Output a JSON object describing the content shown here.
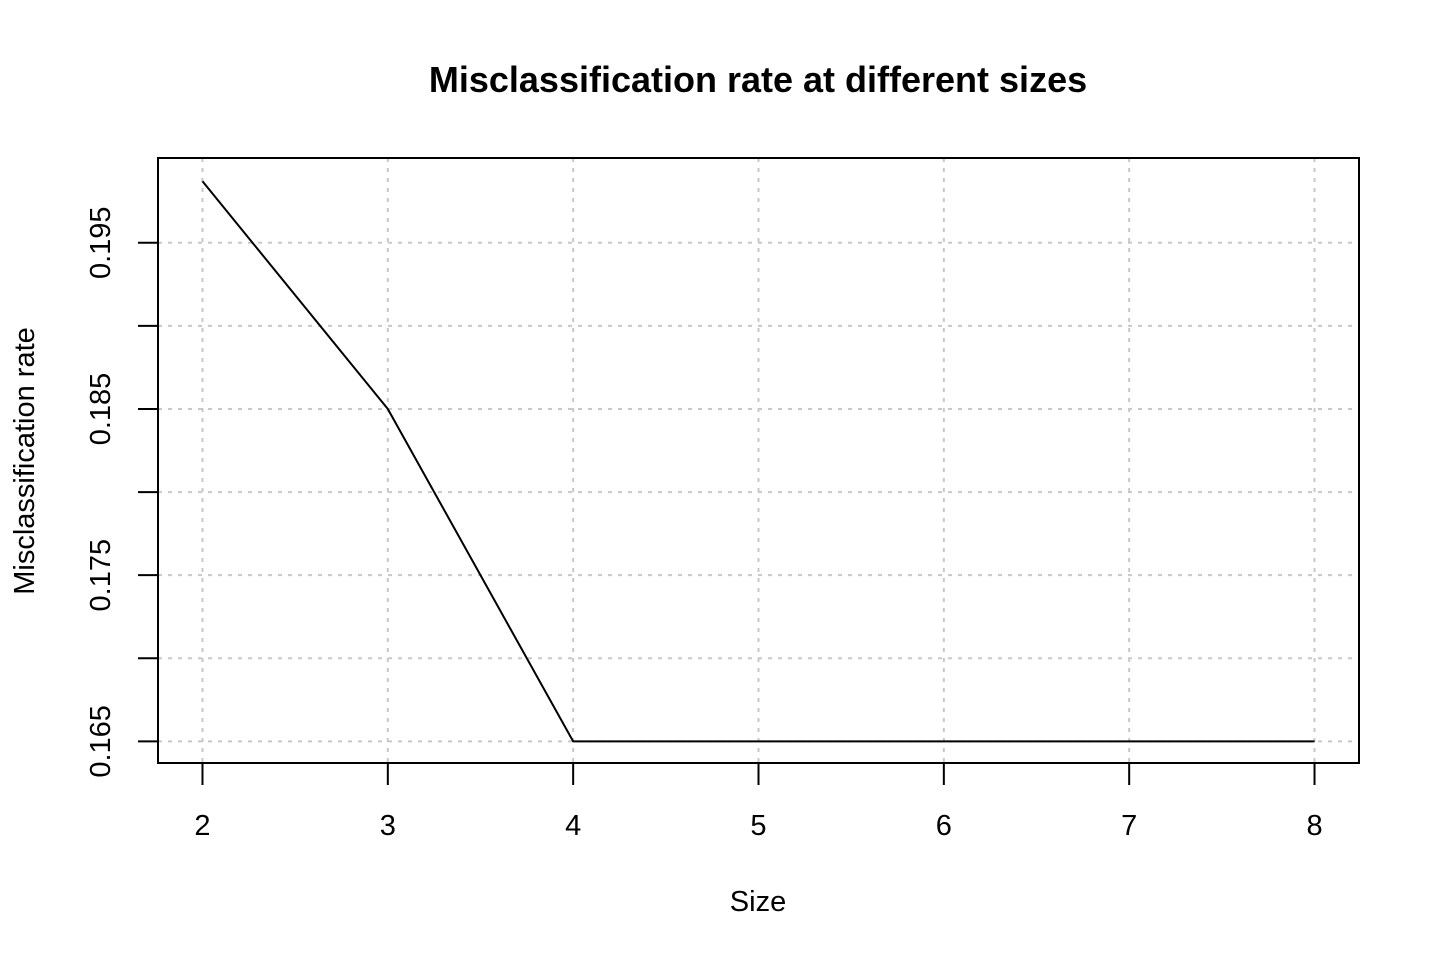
{
  "chart_data": {
    "type": "line",
    "title": "Misclassification rate at different sizes",
    "xlabel": "Size",
    "ylabel": "Misclassification rate",
    "x": [
      2,
      3,
      4,
      5,
      6,
      7,
      8
    ],
    "series": [
      {
        "values": [
          0.1987,
          0.185,
          0.165,
          0.165,
          0.165,
          0.165,
          0.165
        ]
      }
    ],
    "xticks": [
      2,
      3,
      4,
      5,
      6,
      7,
      8
    ],
    "yticks": [
      0.165,
      0.17,
      0.175,
      0.18,
      0.185,
      0.19,
      0.195
    ],
    "ytick_labels": [
      "0.165",
      "",
      "0.175",
      "",
      "0.185",
      "",
      "0.195"
    ],
    "xlim": [
      1.76,
      8.24
    ],
    "ylim": [
      0.1637,
      0.2001
    ],
    "grid": true,
    "line_color": "#000000",
    "grid_color": "#c8c8c8"
  }
}
